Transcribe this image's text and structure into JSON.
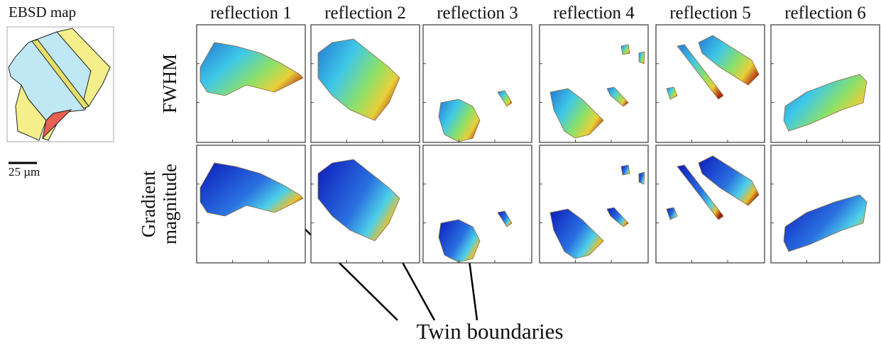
{
  "ebsd": {
    "title": "EBSD map",
    "scale_label": "25 µm"
  },
  "columns": [
    "reflection 1",
    "reflection 2",
    "reflection 3",
    "reflection 4",
    "reflection 5",
    "reflection 6"
  ],
  "rows": [
    {
      "label": [
        "FWHM"
      ]
    },
    {
      "label": [
        "Gradient",
        "magnitude"
      ]
    }
  ],
  "annotation": "Twin boundaries"
}
